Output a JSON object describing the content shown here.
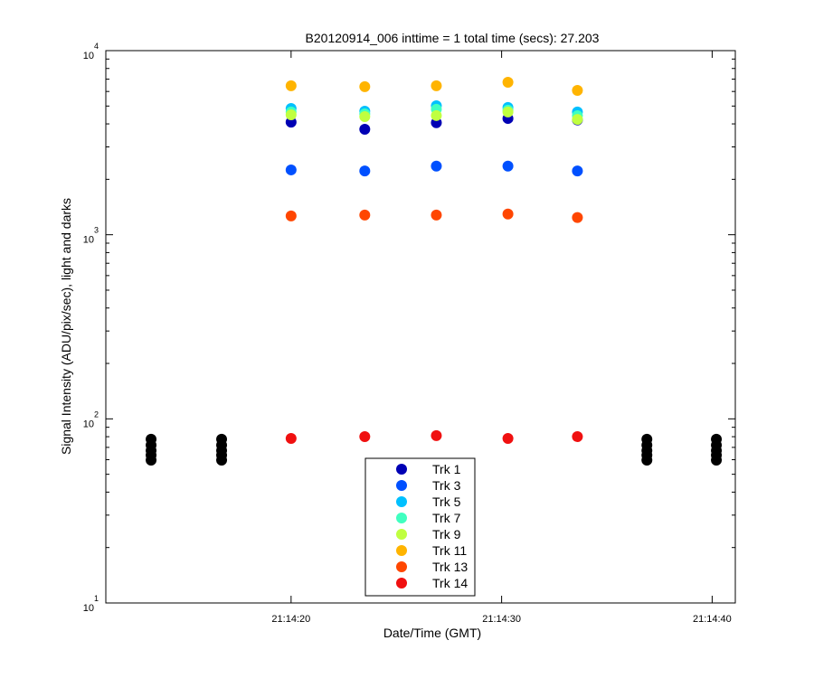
{
  "chart_data": {
    "type": "scatter",
    "title": "B20120914_006 inttime = 1 total time (secs): 27.203",
    "x_label": "Date/Time (GMT)",
    "y_label": "Signal Intensity (ADU/pix/sec), light and darks",
    "y_scale": "log",
    "xlim": [
      11.2,
      41.1
    ],
    "ylim": [
      10,
      10000
    ],
    "xticks": [
      {
        "value": 20,
        "label": "21:14:20"
      },
      {
        "value": 30,
        "label": "21:14:30"
      },
      {
        "value": 40,
        "label": "21:14:40"
      }
    ],
    "yticks": [
      {
        "value": 10,
        "label": "10",
        "power": "1"
      },
      {
        "value": 100,
        "label": "10",
        "power": "2"
      },
      {
        "value": 1000,
        "label": "10",
        "power": "3"
      },
      {
        "value": 10000,
        "label": "10",
        "power": "4"
      }
    ],
    "legend": "bottom-center",
    "series": [
      {
        "name": "Trk 1",
        "color": "#0000b4",
        "x": [
          20.0,
          23.5,
          26.9,
          30.3,
          33.6
        ],
        "values": [
          4090,
          3740,
          4060,
          4280,
          4200
        ]
      },
      {
        "name": "Trk 3",
        "color": "#0050ff",
        "x": [
          20.0,
          23.5,
          26.9,
          30.3,
          33.6
        ],
        "values": [
          2250,
          2220,
          2360,
          2360,
          2220
        ]
      },
      {
        "name": "Trk 5",
        "color": "#00c0ff",
        "x": [
          20.0,
          23.5,
          26.9,
          30.3,
          33.6
        ],
        "values": [
          4850,
          4690,
          5020,
          4910,
          4640
        ]
      },
      {
        "name": "Trk 7",
        "color": "#40ffc0",
        "x": [
          20.0,
          23.5,
          26.9,
          30.3,
          33.6
        ],
        "values": [
          4640,
          4530,
          4800,
          4750,
          4430
        ]
      },
      {
        "name": "Trk 9",
        "color": "#c0ff40",
        "x": [
          20.0,
          23.5,
          26.9,
          30.3,
          33.6
        ],
        "values": [
          4480,
          4380,
          4440,
          4640,
          4230
        ]
      },
      {
        "name": "Trk 11",
        "color": "#ffb400",
        "x": [
          20.0,
          23.5,
          26.9,
          30.3,
          33.6
        ],
        "values": [
          6440,
          6370,
          6440,
          6730,
          6080
        ]
      },
      {
        "name": "Trk 13",
        "color": "#ff4600",
        "x": [
          20.0,
          23.5,
          26.9,
          30.3,
          33.6
        ],
        "values": [
          1265,
          1280,
          1280,
          1295,
          1240
        ]
      },
      {
        "name": "Trk 14",
        "color": "#f01010",
        "x": [
          20.0,
          23.5,
          26.9,
          30.3,
          33.6
        ],
        "values": [
          78.3,
          80.1,
          81.1,
          78.3,
          80.1
        ]
      },
      {
        "color": "#000000",
        "x": [
          13.35,
          13.35,
          13.35,
          13.35,
          13.35,
          16.7,
          16.7,
          16.7,
          16.7,
          16.7,
          36.9,
          36.9,
          36.9,
          36.9,
          36.9,
          40.2,
          40.2,
          40.2,
          40.2,
          40.2
        ],
        "values": [
          77.5,
          72,
          67.3,
          63.5,
          59.7,
          77.5,
          72,
          67.3,
          63.5,
          59.7,
          77.5,
          72,
          67.3,
          63.5,
          59.7,
          77.5,
          72,
          67.3,
          63.5,
          59.7
        ]
      }
    ]
  }
}
